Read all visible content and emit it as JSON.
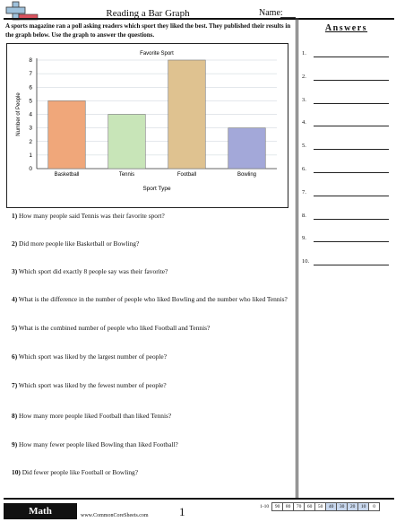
{
  "header": {
    "title": "Reading a Bar Graph",
    "name_label": "Name:"
  },
  "intro": "A sports magazine ran a poll asking readers which sport they liked the best. They published their results in the graph below. Use the graph to answer the questions.",
  "chart_data": {
    "type": "bar",
    "title": "Favorite Sport",
    "xlabel": "Sport Type",
    "ylabel": "Number of People",
    "categories": [
      "Basketball",
      "Tennis",
      "Football",
      "Bowling"
    ],
    "values": [
      5,
      4,
      8,
      3
    ],
    "colors": [
      "#f0a77a",
      "#c8e5b8",
      "#dfc290",
      "#a3a8d9"
    ],
    "ylim": [
      0,
      8
    ],
    "yticks": [
      "0",
      "1",
      "2",
      "3",
      "4",
      "5",
      "6",
      "7",
      "8"
    ],
    "grid": true
  },
  "answers": {
    "title": "Answers",
    "numbers": [
      "1.",
      "2.",
      "3.",
      "4.",
      "5.",
      "6.",
      "7.",
      "8.",
      "9.",
      "10."
    ]
  },
  "questions": [
    {
      "num": "1)",
      "text": "How many people said Tennis was their favorite sport?"
    },
    {
      "num": "2)",
      "text": "Did more people like Basketball or Bowling?"
    },
    {
      "num": "3)",
      "text": "Which sport did exactly 8 people say was their favorite?"
    },
    {
      "num": "4)",
      "text": "What is the difference in the number of people who liked Bowling and the number who liked Tennis?"
    },
    {
      "num": "5)",
      "text": "What is the combined number of people who liked Football and Tennis?"
    },
    {
      "num": "6)",
      "text": "Which sport was liked by the largest number of people?"
    },
    {
      "num": "7)",
      "text": "Which sport was liked by the fewest number of people?"
    },
    {
      "num": "8)",
      "text": "How many more people liked Football than liked Tennis?"
    },
    {
      "num": "9)",
      "text": "How many fewer people liked Bowling than liked Football?"
    },
    {
      "num": "10)",
      "text": "Did fewer people like Football or Bowling?"
    }
  ],
  "footer": {
    "badge": "Math",
    "site": "www.CommonCoreSheets.com",
    "page": "1",
    "score_label": "1-10",
    "scores": [
      "90",
      "80",
      "70",
      "60",
      "50",
      "40",
      "30",
      "20",
      "10",
      "0"
    ]
  }
}
